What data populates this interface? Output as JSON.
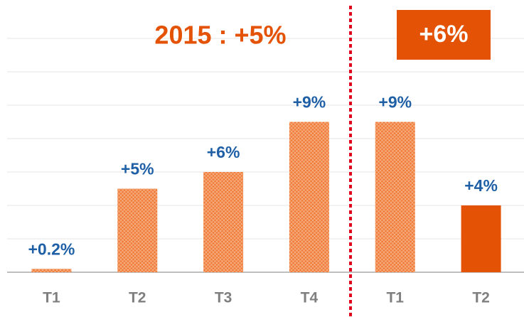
{
  "chart_data": {
    "type": "bar",
    "categories": [
      "T1",
      "T2",
      "T3",
      "T4",
      "T1",
      "T2"
    ],
    "values": [
      0.2,
      5,
      6,
      9,
      9,
      4
    ],
    "value_labels": [
      "+0.2%",
      "+5%",
      "+6%",
      "+9%",
      "+9%",
      "+4%"
    ],
    "colors": [
      "#f07c3a",
      "#f07c3a",
      "#f07c3a",
      "#f07c3a",
      "#f07c3a",
      "#e35205"
    ],
    "hatched": [
      true,
      true,
      true,
      true,
      true,
      false
    ],
    "ylim": [
      0,
      14
    ],
    "yticks": [
      0,
      2,
      4,
      6,
      8,
      10,
      12,
      14
    ],
    "grid": true,
    "annotations": [
      "2015 : +5%",
      "+6%"
    ]
  }
}
